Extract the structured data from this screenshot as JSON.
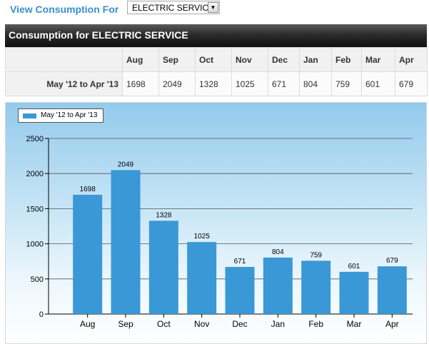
{
  "header": {
    "view_label": "View Consumption For",
    "service_select": "ELECTRIC SERVICE",
    "title": "Consumption for ELECTRIC SERVICE"
  },
  "table": {
    "months": [
      "Aug",
      "Sep",
      "Oct",
      "Nov",
      "Dec",
      "Jan",
      "Feb",
      "Mar",
      "Apr"
    ],
    "row_label": "May '12 to Apr '13",
    "values": [
      1698,
      2049,
      1328,
      1025,
      671,
      804,
      759,
      601,
      679
    ]
  },
  "chart_data": {
    "type": "bar",
    "categories": [
      "Aug",
      "Sep",
      "Oct",
      "Nov",
      "Dec",
      "Jan",
      "Feb",
      "Mar",
      "Apr"
    ],
    "series": [
      {
        "name": "May '12 to Apr '13",
        "values": [
          1698,
          2049,
          1328,
          1025,
          671,
          804,
          759,
          601,
          679
        ],
        "color": "#3a98d6"
      }
    ],
    "yticks": [
      0,
      500,
      1000,
      1500,
      2000,
      2500
    ],
    "ylim": [
      0,
      2500
    ],
    "grid": true,
    "legend_position": "top-left",
    "data_labels": true
  }
}
